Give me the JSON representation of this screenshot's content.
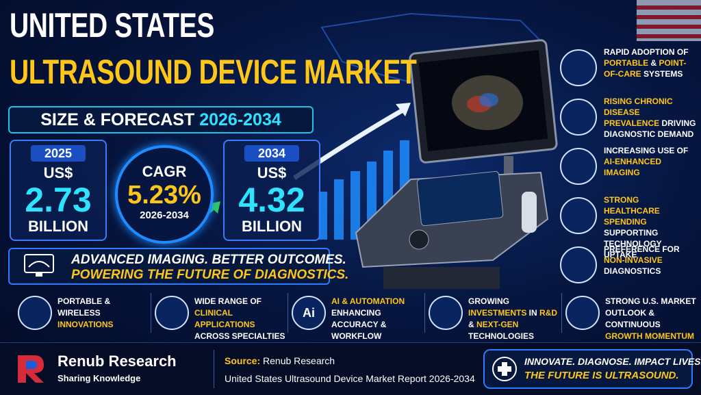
{
  "header": {
    "title_line1": "UNITED STATES",
    "title_line2": "ULTRASOUND DEVICE MARKET",
    "subtitle": "SIZE & FORECAST",
    "subtitle_period": "2026-2034"
  },
  "stats": {
    "start": {
      "year": "2025",
      "currency": "US$",
      "value": "2.73",
      "unit": "BILLION"
    },
    "cagr": {
      "label": "CAGR",
      "value": "5.23%",
      "period": "2026-2034"
    },
    "end": {
      "year": "2034",
      "currency": "US$",
      "value": "4.32",
      "unit": "BILLION"
    }
  },
  "tagline": {
    "line1": "ADVANCED IMAGING. BETTER OUTCOMES.",
    "line2": "POWERING THE FUTURE OF DIAGNOSTICS."
  },
  "highlight_color": "#ffc61a",
  "drivers": [
    {
      "parts": [
        "RAPID ADOPTION OF ",
        {
          "text": "PORTABLE",
          "highlight": true
        },
        " & ",
        {
          "text": "POINT-OF-CARE",
          "highlight": true
        },
        " SYSTEMS"
      ]
    },
    {
      "parts": [
        {
          "text": "RISING CHRONIC DISEASE PREVALENCE",
          "highlight": true
        },
        " DRIVING DIAGNOSTIC DEMAND"
      ]
    },
    {
      "parts": [
        "INCREASING USE OF ",
        {
          "text": "AI-ENHANCED IMAGING",
          "highlight": true
        }
      ]
    },
    {
      "parts": [
        {
          "text": "STRONG HEALTHCARE SPENDING",
          "highlight": true
        },
        " SUPPORTING TECHNOLOGY UPTAKE"
      ]
    },
    {
      "parts": [
        "PREFERENCE FOR ",
        {
          "text": "NON-INVASIVE",
          "highlight": true
        },
        " DIAGNOSTICS"
      ]
    }
  ],
  "features": [
    {
      "parts": [
        "PORTABLE & WIRELESS ",
        {
          "text": "INNOVATIONS",
          "highlight": true
        }
      ]
    },
    {
      "parts": [
        "WIDE RANGE OF ",
        {
          "text": "CLINICAL APPLICATIONS",
          "highlight": true
        },
        " ACROSS SPECIALTIES"
      ]
    },
    {
      "icon_label": "Ai",
      "parts": [
        {
          "text": "AI & AUTOMATION",
          "highlight": true
        },
        " ENHANCING ACCURACY & WORKFLOW"
      ]
    },
    {
      "parts": [
        "GROWING ",
        {
          "text": "INVESTMENTS",
          "highlight": true
        },
        " IN ",
        {
          "text": "R&D",
          "highlight": true
        },
        " & ",
        {
          "text": "NEXT-GEN",
          "highlight": true
        },
        " TECHNOLOGIES"
      ]
    },
    {
      "parts": [
        "STRONG U.S. MARKET OUTLOOK & CONTINUOUS ",
        {
          "text": "GROWTH MOMENTUM",
          "highlight": true
        }
      ]
    }
  ],
  "footer": {
    "brand": "Renub Research",
    "brand_tagline": "Sharing Knowledge",
    "source_label": "Source:",
    "source": "Renub Research",
    "report": "United States Ultrasound Device Market Report 2026-2034",
    "slogan_line1": "INNOVATE. DIAGNOSE. IMPACT LIVES.",
    "slogan_line2": "THE FUTURE IS ULTRASOUND."
  }
}
